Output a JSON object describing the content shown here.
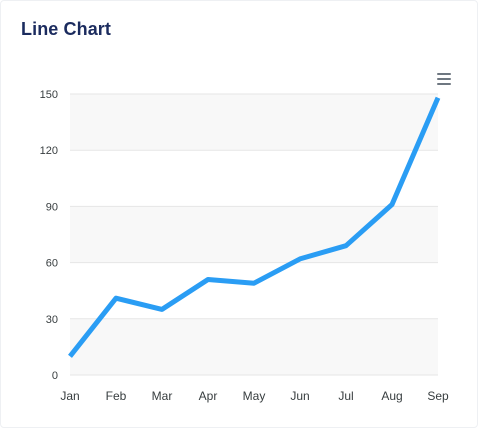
{
  "card": {
    "title": "Line Chart",
    "menu_icon": "hamburger-menu-icon"
  },
  "colors": {
    "line": "#2a9df4",
    "band": "#f8f8f8",
    "grid": "#e6e6e6",
    "title": "#1b2b5e",
    "tick": "#373d3f"
  },
  "chart_data": {
    "type": "line",
    "title": "",
    "xlabel": "",
    "ylabel": "",
    "categories": [
      "Jan",
      "Feb",
      "Mar",
      "Apr",
      "May",
      "Jun",
      "Jul",
      "Aug",
      "Sep"
    ],
    "series": [
      {
        "values": [
          10,
          41,
          35,
          51,
          49,
          62,
          69,
          91,
          148
        ]
      }
    ],
    "ylim": [
      0,
      150
    ],
    "yticks": [
      0,
      30,
      60,
      90,
      120,
      150
    ],
    "grid": true,
    "legend": "none"
  }
}
